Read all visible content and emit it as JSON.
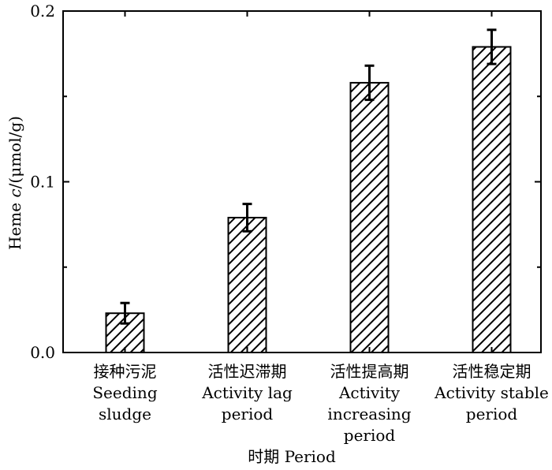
{
  "chart_data": {
    "type": "bar",
    "title": "",
    "ylabel_prefix": "Heme ",
    "ylabel_var": "c",
    "ylabel_suffix": "/(μmol/g)",
    "xlabel": "时期 Period",
    "ylim": [
      0,
      0.2
    ],
    "yticks": [
      0.0,
      0.1,
      0.2
    ],
    "ytick_labels": [
      "0.0",
      "0.1",
      "0.2"
    ],
    "grid": false,
    "legend": "none",
    "categories": [
      [
        "接种污泥",
        "Seeding",
        "sludge"
      ],
      [
        "活性迟滞期",
        "Activity lag",
        "period"
      ],
      [
        "活性提高期",
        "Activity",
        "increasing",
        "period"
      ],
      [
        "活性稳定期",
        "Activity stable",
        "period"
      ]
    ],
    "values": [
      0.023,
      0.079,
      0.158,
      0.179
    ],
    "errors": [
      0.006,
      0.008,
      0.01,
      0.01
    ],
    "bar_fill": "#ffffff",
    "bar_hatch_color": "#000000"
  }
}
